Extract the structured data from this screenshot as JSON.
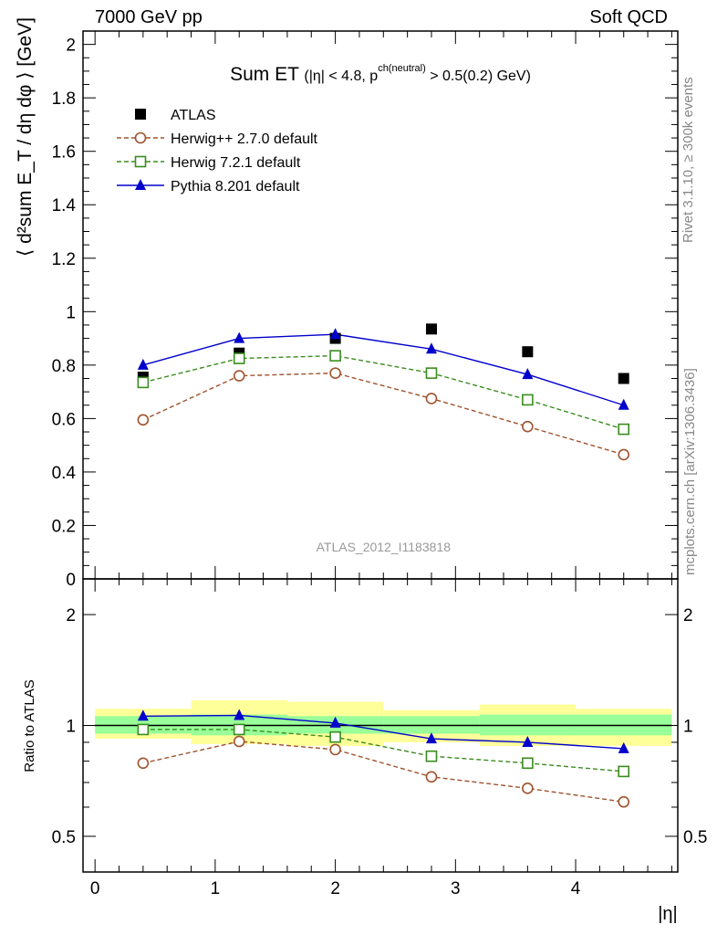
{
  "header": {
    "left": "7000 GeV pp",
    "right": "Soft QCD"
  },
  "side_text": {
    "rivet": "Rivet 3.1.10, ≥ 300k events",
    "mcplots": "mcplots.cern.ch [arXiv:1306.3436]"
  },
  "colors": {
    "atlas": "#000000",
    "herwig_pp": "#a0522d",
    "herwig7": "#3a8c1e",
    "pythia": "#0000cc",
    "band_inner": "#99ff99",
    "band_outer": "#ffff99",
    "watermark": "#999999"
  },
  "chart_data": [
    {
      "type": "scatter",
      "panel": "main",
      "title": "Sum ET (|η| < 4.8, p^ch(neutral) > 0.5(0.2) GeV)",
      "title_main": "Sum ET",
      "title_cond1": "(|η| < 4.8, p",
      "title_sup": "ch(neutral)",
      "title_cond2": " > 0.5(0.2) GeV)",
      "ylabel": "⟨ d²sum E_T / dη dφ ⟩ [GeV]",
      "watermark": "ATLAS_2012_I1183818",
      "xlim": [
        -0.1,
        4.85
      ],
      "ylim": [
        0,
        2.05
      ],
      "yticks": [
        0,
        0.2,
        0.4,
        0.6,
        0.8,
        1,
        1.2,
        1.4,
        1.6,
        1.8,
        2
      ],
      "ytick_labels": [
        "0",
        "0.2",
        "0.4",
        "0.6",
        "0.8",
        "1",
        "1.2",
        "1.4",
        "1.6",
        "1.8",
        "2"
      ],
      "legend_position": "top-left",
      "x": [
        0.4,
        1.2,
        2.0,
        2.8,
        3.6,
        4.4
      ],
      "series": [
        {
          "name": "ATLAS",
          "marker": "square-filled",
          "line": "none",
          "values": [
            0.755,
            0.845,
            0.9,
            0.935,
            0.85,
            0.75
          ]
        },
        {
          "name": "Herwig++ 2.7.0 default",
          "marker": "circle-open",
          "line": "dashed",
          "values": [
            0.595,
            0.76,
            0.77,
            0.675,
            0.57,
            0.465
          ]
        },
        {
          "name": "Herwig 7.2.1 default",
          "marker": "square-open",
          "line": "dashed",
          "values": [
            0.735,
            0.825,
            0.835,
            0.77,
            0.67,
            0.56
          ]
        },
        {
          "name": "Pythia 8.201 default",
          "marker": "triangle-filled",
          "line": "solid",
          "values": [
            0.8,
            0.9,
            0.915,
            0.86,
            0.765,
            0.65
          ]
        }
      ]
    },
    {
      "type": "line",
      "panel": "ratio",
      "ylabel": "Ratio to ATLAS",
      "xlabel": "|η|",
      "scale_y": "log",
      "xlim": [
        -0.1,
        4.85
      ],
      "ylim": [
        0.4,
        2.5
      ],
      "xticks": [
        0,
        1,
        2,
        3,
        4
      ],
      "xtick_labels": [
        "0",
        "1",
        "2",
        "3",
        "4"
      ],
      "yticks": [
        0.5,
        1,
        2
      ],
      "ytick_labels": [
        "0.5",
        "1",
        "2"
      ],
      "bands": {
        "x_edges": [
          0,
          0.8,
          1.6,
          2.4,
          3.2,
          4.0,
          4.8
        ],
        "inner": [
          [
            0.95,
            1.06
          ],
          [
            0.94,
            1.07
          ],
          [
            0.95,
            1.06
          ],
          [
            0.95,
            1.06
          ],
          [
            0.94,
            1.07
          ],
          [
            0.94,
            1.07
          ]
        ],
        "outer": [
          [
            0.92,
            1.11
          ],
          [
            0.89,
            1.17
          ],
          [
            0.88,
            1.16
          ],
          [
            0.9,
            1.1
          ],
          [
            0.88,
            1.14
          ],
          [
            0.88,
            1.11
          ]
        ]
      },
      "x": [
        0.4,
        1.2,
        2.0,
        2.8,
        3.6,
        4.4
      ],
      "series": [
        {
          "name": "Herwig++ 2.7.0 default",
          "marker": "circle-open",
          "line": "dashed",
          "values": [
            0.79,
            0.905,
            0.86,
            0.725,
            0.675,
            0.62
          ]
        },
        {
          "name": "Herwig 7.2.1 default",
          "marker": "square-open",
          "line": "dashed",
          "values": [
            0.975,
            0.975,
            0.93,
            0.825,
            0.79,
            0.75
          ]
        },
        {
          "name": "Pythia 8.201 default",
          "marker": "triangle-filled",
          "line": "solid",
          "values": [
            1.06,
            1.065,
            1.015,
            0.92,
            0.9,
            0.865
          ]
        }
      ]
    }
  ]
}
